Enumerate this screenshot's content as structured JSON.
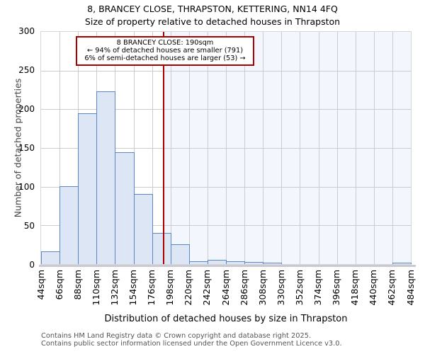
{
  "title": "8, BRANCEY CLOSE, THRAPSTON, KETTERING, NN14 4FQ",
  "subtitle": "Size of property relative to detached houses in Thrapston",
  "annotation": {
    "line1": "8 BRANCEY CLOSE: 190sqm",
    "line2": "← 94% of detached houses are smaller (791)",
    "line3": "6% of semi-detached houses are larger (53) →"
  },
  "chart_data": {
    "type": "bar",
    "title": "8, BRANCEY CLOSE, THRAPSTON, KETTERING, NN14 4FQ",
    "subtitle": "Size of property relative to detached houses in Thrapston",
    "categories": [
      "44sqm",
      "66sqm",
      "88sqm",
      "110sqm",
      "132sqm",
      "154sqm",
      "176sqm",
      "198sqm",
      "220sqm",
      "242sqm",
      "264sqm",
      "286sqm",
      "308sqm",
      "330sqm",
      "352sqm",
      "374sqm",
      "396sqm",
      "418sqm",
      "440sqm",
      "462sqm",
      "484sqm"
    ],
    "bin_edges_sqm": [
      44,
      66,
      88,
      110,
      132,
      154,
      176,
      198,
      220,
      242,
      264,
      286,
      308,
      330,
      352,
      374,
      396,
      418,
      440,
      462,
      484
    ],
    "values": [
      16,
      100,
      194,
      222,
      144,
      90,
      39,
      25,
      3,
      5,
      3,
      2,
      1,
      0,
      0,
      0,
      0,
      0,
      0,
      1
    ],
    "xlabel": "Distribution of detached houses by size in Thrapston",
    "ylabel": "Number of detached properties",
    "ylim": [
      0,
      300
    ],
    "yticks": [
      0,
      50,
      100,
      150,
      200,
      250,
      300
    ],
    "grid": true,
    "legend": "none",
    "marker": {
      "value_sqm": 190,
      "label": "190sqm"
    },
    "colors": {
      "bar_fill": "#dce6f4",
      "bar_edge": "#5b87c3",
      "marker_line": "#aa0000",
      "annotation_border": "#aa0000",
      "shade_right_of_marker": "#f3f6fd",
      "gridline": "#cccccc"
    }
  },
  "footer": {
    "line1": "Contains HM Land Registry data © Crown copyright and database right 2025.",
    "line2": "Contains public sector information licensed under the Open Government Licence v3.0."
  }
}
